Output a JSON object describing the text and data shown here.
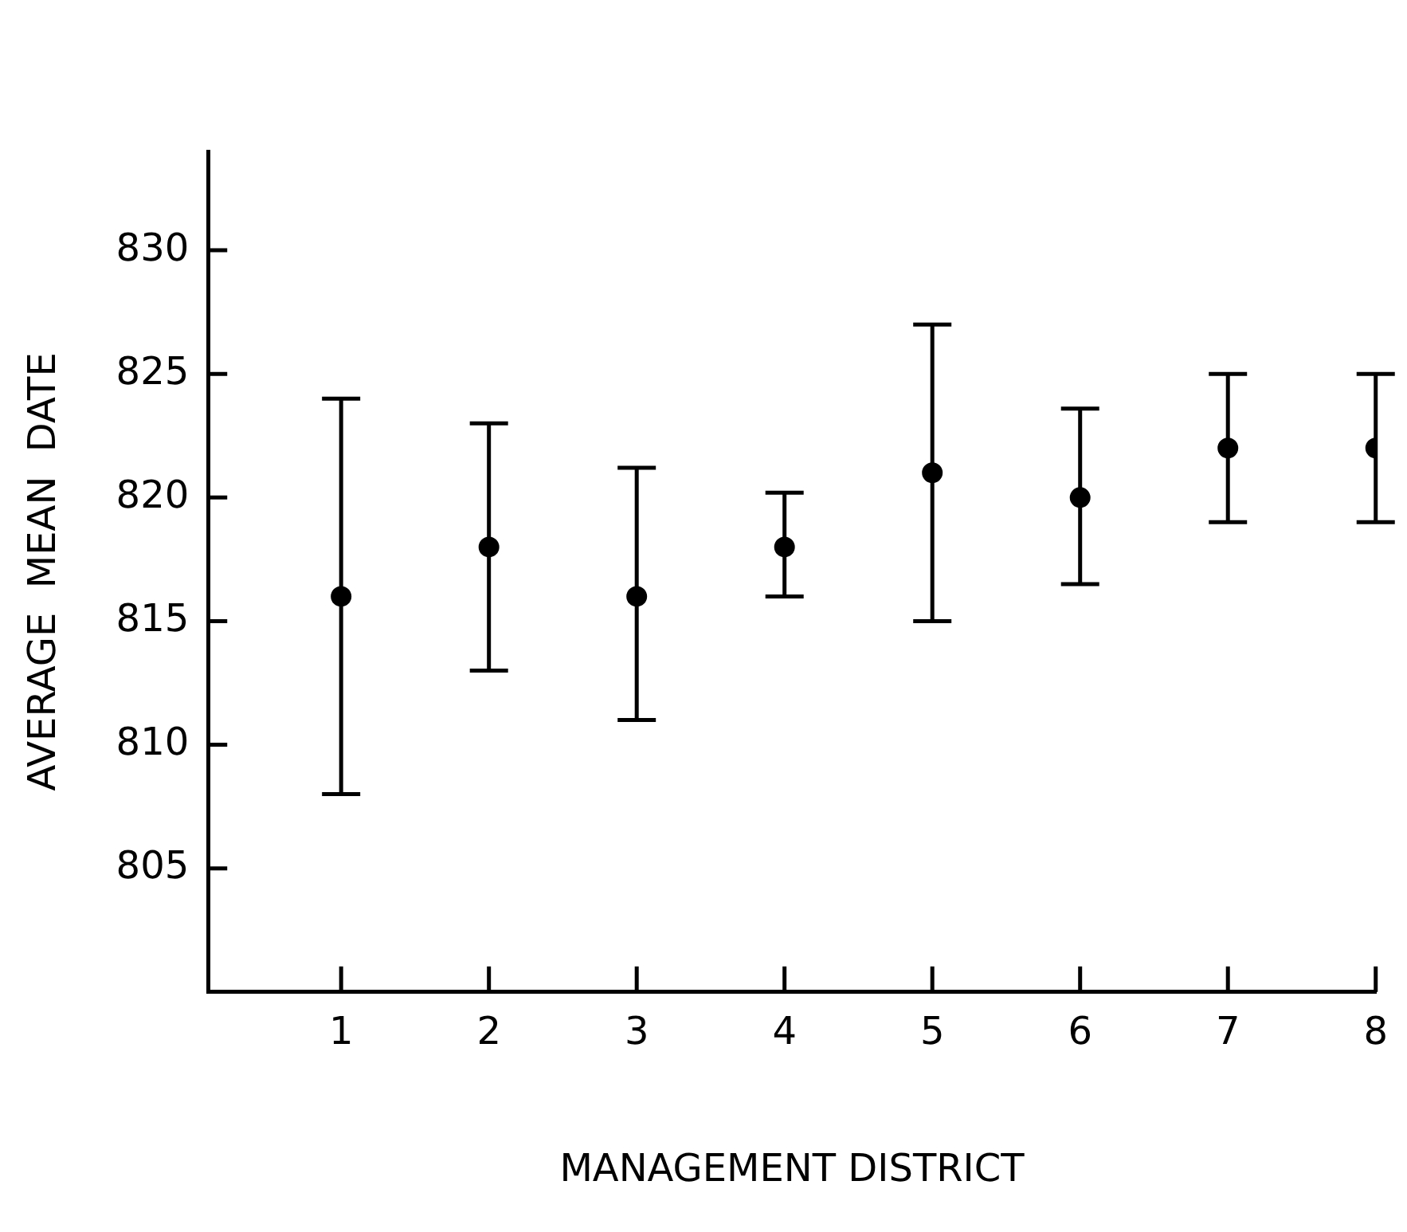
{
  "chart_data": {
    "type": "scatter",
    "xlabel": "MANAGEMENT DISTRICT",
    "ylabel": "AVERAGE  MEAN  DATE",
    "x": [
      1,
      2,
      3,
      4,
      5,
      6,
      7,
      8
    ],
    "series": [
      {
        "color": "#000000",
        "values": [
          816,
          818,
          816,
          818,
          821,
          820,
          822,
          822
        ],
        "errors": [
          [
            808,
            824
          ],
          [
            813,
            823
          ],
          [
            811,
            821.2
          ],
          [
            816,
            820.2
          ],
          [
            815,
            827
          ],
          [
            816.5,
            823.6
          ],
          [
            819,
            825
          ],
          [
            819,
            825
          ]
        ]
      }
    ],
    "xlim": [
      0.1,
      8
    ],
    "xticks": [
      1,
      2,
      3,
      4,
      5,
      6,
      7,
      8
    ],
    "ylim": [
      800,
      834
    ],
    "yticks": [
      805,
      810,
      815,
      820,
      825,
      830
    ],
    "grid": false,
    "legend": false,
    "marker": "circle"
  }
}
